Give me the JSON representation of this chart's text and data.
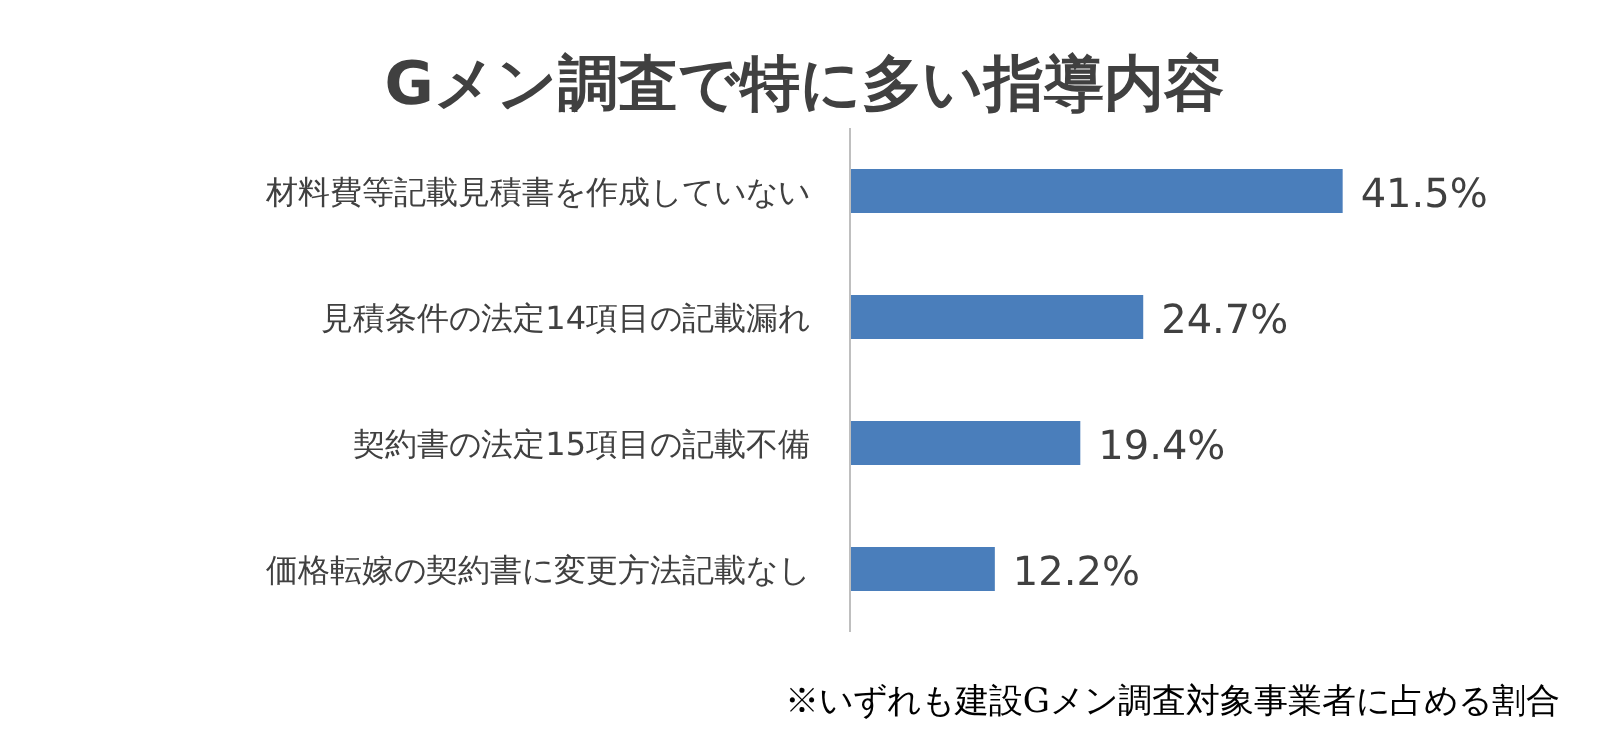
{
  "chart_data": {
    "type": "bar",
    "orientation": "horizontal",
    "title": "Gメン調査で特に多い指導内容",
    "categories": [
      "材料費等記載見積書を作成していない",
      "見積条件の法定14項目の記載漏れ",
      "契約書の法定15項目の記載不備",
      "価格転嫁の契約書に変更方法記載なし"
    ],
    "values": [
      41.5,
      24.7,
      19.4,
      12.2
    ],
    "color": "#4a7ebb",
    "data_labels": true,
    "value_labels": [
      "41.5%",
      "24.7%",
      "19.4%",
      "12.2%"
    ],
    "tick_labels": "y",
    "annotations": [
      "※いずれも建設Gメン調査対象事業者に占める割合"
    ]
  }
}
